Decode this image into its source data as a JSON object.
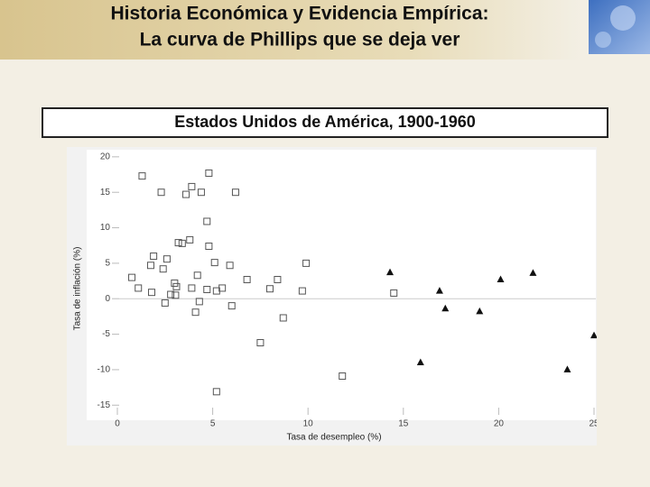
{
  "slide": {
    "title_line1": "Historia Económica y Evidencia Empírica:",
    "title_line2": "La curva de Phillips que se deja ver"
  },
  "chart_data": {
    "type": "scatter",
    "title": "Estados Unidos de América, 1900-1960",
    "x_label": "Tasa de desempleo (%)",
    "y_label": "Tasa de inflación (%)",
    "xlim": [
      0,
      25
    ],
    "xticks": [
      0,
      5,
      10,
      15,
      20,
      25
    ],
    "ylim": [
      -17,
      21
    ],
    "yticks": [
      -15,
      -10,
      -5,
      0,
      5,
      10,
      15,
      20
    ],
    "series": [
      {
        "marker": "square",
        "color": "#555555",
        "x": [
          1.3,
          4.8,
          2.3,
          3.6,
          3.9,
          4.4,
          6.2,
          4.7,
          3.8,
          3.2,
          3.4,
          4.8,
          1.9,
          2.6,
          1.75,
          2.4,
          5.1,
          5.9,
          9.9,
          0.76,
          4.2,
          1.1,
          1.8,
          3.0,
          3.1,
          3.9,
          4.7,
          5.2,
          5.5,
          6.8,
          8.4,
          8.0,
          9.7,
          14.5,
          2.8,
          3.05,
          2.5,
          4.3,
          6.0,
          4.1,
          8.7,
          7.5,
          11.8,
          5.2
        ],
        "values": [
          17.3,
          17.7,
          15,
          14.7,
          15.8,
          15,
          15,
          10.9,
          8.3,
          7.9,
          7.8,
          7.4,
          6,
          5.6,
          4.7,
          4.2,
          5.1,
          4.7,
          5,
          3,
          3.3,
          1.5,
          0.9,
          2.2,
          1.7,
          1.5,
          1.3,
          1.1,
          1.5,
          2.7,
          2.7,
          1.4,
          1.1,
          0.8,
          0.6,
          0.5,
          -0.6,
          -0.4,
          -1.0,
          -1.9,
          -2.7,
          -6.2,
          -10.9,
          -13.1
        ]
      },
      {
        "marker": "triangle",
        "color": "#111111",
        "x": [
          14.3,
          16.9,
          17.2,
          19.0,
          20.1,
          21.8,
          25.0,
          23.6,
          15.9
        ],
        "values": [
          3.7,
          1.1,
          -1.4,
          -1.8,
          2.7,
          3.6,
          -5.2,
          -10,
          -9.0
        ]
      }
    ]
  }
}
